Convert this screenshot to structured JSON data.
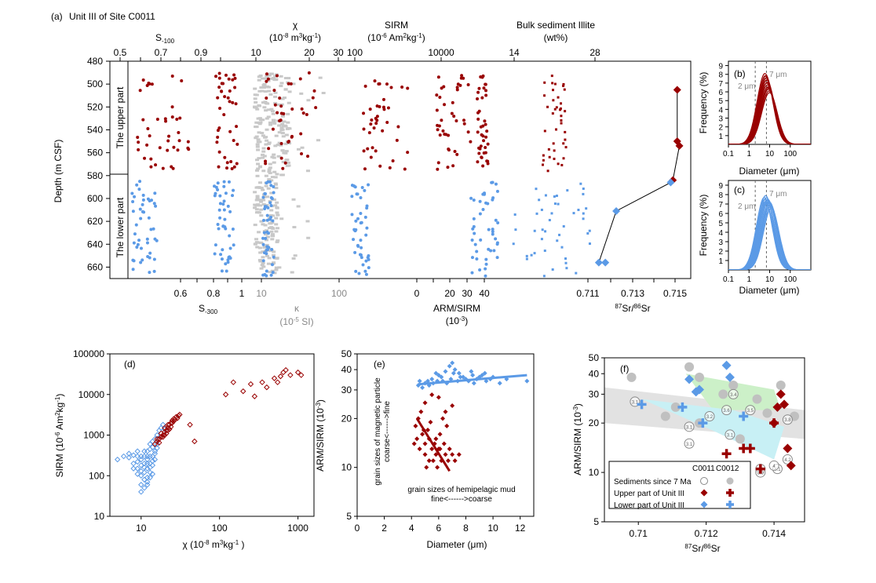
{
  "colors": {
    "upper": "#990000",
    "lower": "#5b9ae6",
    "gray": "#c8c8c8",
    "green": "#ccf0c8",
    "cyan": "#c8f0f5"
  },
  "chart_data": [
    {
      "id": "a",
      "type": "scatter",
      "panel_label": "(a)",
      "title": "Unit III of Site C0011",
      "ylabel": "Depth  (m CSF)",
      "ylim": [
        480,
        670
      ],
      "yticks": [
        "480",
        "500",
        "520",
        "540",
        "560",
        "580",
        "600",
        "620",
        "640",
        "660"
      ],
      "sections": [
        "The upper part",
        "The lower part"
      ],
      "boundary_depth": 580,
      "columns": [
        {
          "label": "S-100",
          "label_main": "S",
          "label_sub": "-100",
          "position": "top",
          "ticks": [
            "0.5",
            "0.7",
            "0.9"
          ],
          "xlim": [
            0.5,
            1.0
          ]
        },
        {
          "label": "χ",
          "label_unit": "(10-8 m3kg-1)",
          "unit_text": "(10",
          "unit_p1": "-8",
          "unit_mid": " m",
          "unit_p2": "3",
          "unit_mid2": "kg",
          "unit_p3": "-1",
          "unit_end": ")",
          "position": "top",
          "ticks": [
            "10",
            "20",
            "30"
          ],
          "scale": "log"
        },
        {
          "label": "SIRM",
          "unit_text": "(10",
          "unit_p1": "-6",
          "unit_mid": " Am",
          "unit_p2": "2",
          "unit_mid2": "kg",
          "unit_p3": "-1",
          "unit_end": ")",
          "position": "top",
          "ticks": [
            "100",
            "10000"
          ],
          "scale": "log"
        },
        {
          "label": "Bulk sediment Illite",
          "label_unit": "(wt%)",
          "position": "top",
          "ticks": [
            "14",
            "28"
          ]
        },
        {
          "label": "S-300",
          "label_main": "S",
          "label_sub": "-300",
          "position": "bottom",
          "ticks": [
            "0.6",
            "0.8",
            "1"
          ]
        },
        {
          "label": "κ",
          "label_unit": "(10-5 SI)",
          "unit_text": "(10",
          "unit_p1": "-5",
          "unit_mid": " SI)",
          "position": "bottom",
          "ticks": [
            "10",
            "100"
          ],
          "scale": "log",
          "color": "gray"
        },
        {
          "label": "ARM/SIRM",
          "label_unit": "(10-3)",
          "unit_text": "(10",
          "unit_p1": "-3",
          "unit_end": ")",
          "position": "bottom",
          "ticks": [
            "0",
            "20",
            "30",
            "40"
          ]
        },
        {
          "label": "87Sr/86Sr",
          "sup1": "87",
          "main1": "Sr/",
          "sup2": "86",
          "main2": "Sr",
          "position": "bottom",
          "ticks": [
            "0.711",
            "0.713",
            "0.715"
          ],
          "xlim": [
            0.71,
            0.7155
          ]
        }
      ],
      "sr_series": {
        "upper": [
          [
            0.7151,
            505
          ],
          [
            0.7151,
            550
          ],
          [
            0.7152,
            554
          ],
          [
            0.7149,
            584
          ]
        ],
        "lower": [
          [
            0.7148,
            586
          ],
          [
            0.7123,
            611
          ],
          [
            0.7115,
            656
          ],
          [
            0.7118,
            656
          ]
        ]
      }
    },
    {
      "id": "b",
      "type": "line",
      "panel_label": "(b)",
      "xlabel": "Diameter (μm)",
      "ylabel": "Frequency (%)",
      "xticks": [
        "0.1",
        "1",
        "10",
        "100"
      ],
      "yticks": [
        "1",
        "2",
        "3",
        "4",
        "5",
        "6",
        "7",
        "8",
        "9"
      ],
      "ylim": [
        0,
        9.5
      ],
      "markers": [
        "2 μm",
        "7 μm"
      ],
      "series_color": "upper",
      "curves": [
        {
          "peak": 7.8,
          "mode_um": 7
        },
        {
          "peak": 7.0,
          "mode_um": 8
        },
        {
          "peak": 6.5,
          "mode_um": 9
        },
        {
          "peak": 8.1,
          "mode_um": 6.5
        }
      ]
    },
    {
      "id": "c",
      "type": "line",
      "panel_label": "(c)",
      "xlabel": "Diameter (μm)",
      "ylabel": "Frequency (%)",
      "xticks": [
        "0.1",
        "1",
        "10",
        "100"
      ],
      "yticks": [
        "1",
        "2",
        "3",
        "4",
        "5",
        "6",
        "7",
        "8",
        "9"
      ],
      "ylim": [
        0,
        9.5
      ],
      "markers": [
        "2 μm",
        "7 μm"
      ],
      "series_color": "lower",
      "curves": [
        {
          "peak": 7.9,
          "mode_um": 7
        },
        {
          "peak": 7.5,
          "mode_um": 9
        },
        {
          "peak": 7.2,
          "mode_um": 11
        },
        {
          "peak": 7.7,
          "mode_um": 6
        }
      ]
    },
    {
      "id": "d",
      "type": "scatter",
      "panel_label": "(d)",
      "xlabel": "χ (10-8 m3kg-1)",
      "ylabel": "SIRM (10-6 Am2kg-1)",
      "xscale": "log",
      "yscale": "log",
      "xticks": [
        "10",
        "100",
        "1000"
      ],
      "yticks": [
        "10",
        "100",
        "1000",
        "10000",
        "100000"
      ],
      "xlim": [
        4,
        1600
      ],
      "ylim": [
        10,
        100000
      ],
      "upper_points": [
        [
          15,
          600
        ],
        [
          16,
          700
        ],
        [
          17,
          800
        ],
        [
          18,
          900
        ],
        [
          19,
          1000
        ],
        [
          20,
          1200
        ],
        [
          21,
          1300
        ],
        [
          22,
          1500
        ],
        [
          23,
          1800
        ],
        [
          24,
          2000
        ],
        [
          25,
          2300
        ],
        [
          26,
          2500
        ],
        [
          28,
          2800
        ],
        [
          30,
          3000
        ],
        [
          18,
          1100
        ],
        [
          20,
          1500
        ],
        [
          22,
          1800
        ],
        [
          24,
          1600
        ],
        [
          26,
          2200
        ],
        [
          17,
          650
        ],
        [
          19,
          900
        ],
        [
          21,
          1100
        ],
        [
          23,
          1400
        ],
        [
          25,
          2000
        ],
        [
          27,
          2400
        ],
        [
          29,
          2600
        ],
        [
          16,
          800
        ],
        [
          20,
          1000
        ],
        [
          22,
          1300
        ],
        [
          31,
          3200
        ],
        [
          42,
          1800
        ],
        [
          48,
          700
        ],
        [
          120,
          10000
        ],
        [
          150,
          20000
        ],
        [
          200,
          12000
        ],
        [
          250,
          18000
        ],
        [
          280,
          9000
        ],
        [
          350,
          20000
        ],
        [
          500,
          25000
        ],
        [
          600,
          28000
        ],
        [
          650,
          35000
        ],
        [
          700,
          40000
        ],
        [
          800,
          30000
        ],
        [
          1000,
          35000
        ],
        [
          1100,
          30000
        ],
        [
          400,
          15000
        ],
        [
          550,
          20000
        ]
      ],
      "lower_points": [
        [
          5,
          250
        ],
        [
          6,
          300
        ],
        [
          7,
          280
        ],
        [
          8,
          200
        ],
        [
          8,
          320
        ],
        [
          9,
          300
        ],
        [
          9,
          150
        ],
        [
          10,
          250
        ],
        [
          10,
          180
        ],
        [
          10,
          100
        ],
        [
          10,
          60
        ],
        [
          11,
          300
        ],
        [
          11,
          200
        ],
        [
          11,
          120
        ],
        [
          11,
          80
        ],
        [
          12,
          400
        ],
        [
          12,
          250
        ],
        [
          12,
          150
        ],
        [
          12,
          90
        ],
        [
          12,
          70
        ],
        [
          13,
          300
        ],
        [
          13,
          200
        ],
        [
          13,
          120
        ],
        [
          13,
          600
        ],
        [
          14,
          500
        ],
        [
          14,
          300
        ],
        [
          14,
          180
        ],
        [
          14,
          700
        ],
        [
          15,
          800
        ],
        [
          15,
          400
        ],
        [
          15,
          250
        ],
        [
          16,
          1000
        ],
        [
          16,
          600
        ],
        [
          17,
          1300
        ],
        [
          17,
          800
        ],
        [
          18,
          1500
        ],
        [
          19,
          1800
        ],
        [
          20,
          1400
        ],
        [
          9,
          400
        ],
        [
          10,
          300
        ],
        [
          11,
          400
        ],
        [
          12,
          300
        ],
        [
          13,
          450
        ],
        [
          7,
          350
        ],
        [
          8,
          150
        ],
        [
          9,
          220
        ],
        [
          10,
          130
        ],
        [
          11,
          160
        ],
        [
          12,
          200
        ],
        [
          13,
          160
        ],
        [
          14,
          230
        ],
        [
          15,
          350
        ],
        [
          16,
          480
        ],
        [
          12,
          60
        ],
        [
          11,
          50
        ],
        [
          10,
          40
        ],
        [
          13,
          90
        ],
        [
          14,
          110
        ],
        [
          9,
          110
        ]
      ]
    },
    {
      "id": "e",
      "type": "scatter",
      "panel_label": "(e)",
      "xlabel": "Diameter (μm)",
      "ylabel": "ARM/SIRM (10-3)",
      "yscale": "log",
      "xlim": [
        0,
        13
      ],
      "ylim": [
        5,
        50
      ],
      "xticks": [
        "0",
        "2",
        "4",
        "6",
        "8",
        "10",
        "12"
      ],
      "yticks": [
        "5",
        "10",
        "20",
        "30",
        "40",
        "50"
      ],
      "annotation_vertical": [
        "grain sizes of magnetic particle",
        "coarse<------>fine"
      ],
      "annotation_horizontal": [
        "grain sizes of hemipelagic mud",
        "fine<------>coarse"
      ],
      "upper_points": [
        [
          4.2,
          14
        ],
        [
          4.3,
          18
        ],
        [
          4.5,
          20
        ],
        [
          4.6,
          13
        ],
        [
          4.8,
          16
        ],
        [
          5,
          12
        ],
        [
          5,
          14
        ],
        [
          5.1,
          10
        ],
        [
          5.2,
          17
        ],
        [
          5.3,
          15
        ],
        [
          5.4,
          19
        ],
        [
          5.5,
          13
        ],
        [
          5.6,
          11
        ],
        [
          5.7,
          14
        ],
        [
          5.8,
          12
        ],
        [
          5.9,
          10
        ],
        [
          6,
          13
        ],
        [
          6.1,
          16
        ],
        [
          6.2,
          11
        ],
        [
          6.3,
          20
        ],
        [
          6.4,
          14
        ],
        [
          6.5,
          12
        ],
        [
          6.6,
          18
        ],
        [
          6.8,
          13
        ],
        [
          7,
          12
        ],
        [
          7.2,
          11
        ],
        [
          7.5,
          12
        ],
        [
          4.4,
          15
        ],
        [
          4.7,
          22
        ],
        [
          5,
          25
        ],
        [
          5.5,
          28
        ],
        [
          6,
          27
        ],
        [
          6.5,
          22
        ],
        [
          7,
          24
        ],
        [
          4.9,
          17
        ],
        [
          5.3,
          11
        ],
        [
          5.8,
          15
        ],
        [
          6.1,
          13
        ],
        [
          6.7,
          11
        ]
      ],
      "lower_points": [
        [
          4.5,
          32
        ],
        [
          5,
          33
        ],
        [
          5.2,
          34
        ],
        [
          5.5,
          35
        ],
        [
          5.8,
          38
        ],
        [
          6,
          37
        ],
        [
          6.2,
          36
        ],
        [
          6.5,
          39
        ],
        [
          6.8,
          42
        ],
        [
          7,
          44
        ],
        [
          7.2,
          40
        ],
        [
          7.5,
          38
        ],
        [
          7.8,
          36
        ],
        [
          8,
          35
        ],
        [
          8.2,
          34
        ],
        [
          8.5,
          37
        ],
        [
          8.8,
          35
        ],
        [
          9,
          36
        ],
        [
          9.5,
          34
        ],
        [
          10,
          36
        ],
        [
          10.5,
          33
        ],
        [
          11,
          35
        ],
        [
          12.5,
          34
        ],
        [
          4.8,
          31
        ],
        [
          5.3,
          32
        ],
        [
          5.6,
          33
        ],
        [
          6.3,
          34
        ],
        [
          6.6,
          33
        ],
        [
          7.4,
          34
        ],
        [
          8.6,
          33
        ],
        [
          9.2,
          37
        ],
        [
          9.8,
          35
        ],
        [
          6.9,
          35
        ],
        [
          7.6,
          36
        ],
        [
          5.9,
          34
        ],
        [
          4.6,
          34
        ],
        [
          7.1,
          38
        ],
        [
          8.4,
          39
        ],
        [
          9.4,
          38
        ]
      ],
      "fit_upper": [
        [
          4.4,
          20
        ],
        [
          6.8,
          9.5
        ]
      ],
      "fit_lower": [
        [
          4.5,
          32.5
        ],
        [
          12.5,
          37
        ]
      ]
    },
    {
      "id": "f",
      "type": "scatter",
      "panel_label": "(f)",
      "xlabel": "87Sr/86Sr",
      "ylabel": "ARM/SIRM (10-3)",
      "yscale": "log",
      "xlim": [
        0.709,
        0.7149
      ],
      "ylim": [
        5,
        50
      ],
      "xticks": [
        "0.71",
        "0.712",
        "0.714"
      ],
      "yticks": [
        "5",
        "10",
        "20",
        "30",
        "40",
        "50"
      ],
      "legend": {
        "header": [
          "C0011",
          "C0012"
        ],
        "rows": [
          "Sediments since 7 Ma",
          "Upper part of Unit III",
          "Lower part of Unit III"
        ]
      },
      "gray_points": [
        [
          0.7098,
          38
        ],
        [
          0.7108,
          22
        ],
        [
          0.7111,
          25
        ],
        [
          0.7115,
          44
        ],
        [
          0.7118,
          38
        ],
        [
          0.7125,
          30
        ],
        [
          0.7128,
          34
        ],
        [
          0.7135,
          28
        ],
        [
          0.7138,
          23
        ],
        [
          0.7142,
          34
        ],
        [
          0.7146,
          22
        ],
        [
          0.713,
          16
        ],
        [
          0.7118,
          20
        ]
      ],
      "gray_circle_labels": [
        [
          0.7099,
          27,
          "3.1"
        ],
        [
          0.7115,
          19,
          "3.1"
        ],
        [
          0.7115,
          15,
          "3.1"
        ],
        [
          0.7121,
          22,
          "3.2"
        ],
        [
          0.7126,
          24,
          "3.6"
        ],
        [
          0.7128,
          30,
          "3.4"
        ],
        [
          0.7127,
          17,
          "3.1"
        ],
        [
          0.7133,
          24,
          "3.5"
        ],
        [
          0.7144,
          21,
          "3.8"
        ],
        [
          0.7144,
          12,
          "4.2"
        ],
        [
          0.7141,
          10.5,
          "4.1"
        ],
        [
          0.714,
          11,
          "4"
        ],
        [
          0.7136,
          10.5,
          "4"
        ],
        [
          0.7136,
          10,
          "3.9"
        ]
      ],
      "upper_diamonds": [
        [
          0.7142,
          30
        ],
        [
          0.7143,
          26
        ],
        [
          0.7141,
          25
        ],
        [
          0.714,
          20
        ],
        [
          0.7144,
          14
        ],
        [
          0.7145,
          11
        ]
      ],
      "upper_plus": [
        [
          0.7126,
          13
        ],
        [
          0.7131,
          14
        ],
        [
          0.7133,
          14
        ],
        [
          0.714,
          20
        ],
        [
          0.7136,
          10.5
        ]
      ],
      "lower_diamonds": [
        [
          0.7115,
          37
        ],
        [
          0.7117,
          31
        ],
        [
          0.7118,
          32
        ],
        [
          0.7127,
          38
        ],
        [
          0.7126,
          45
        ]
      ],
      "lower_plus": [
        [
          0.7101,
          26
        ],
        [
          0.7113,
          25
        ],
        [
          0.7119,
          20
        ],
        [
          0.7131,
          22
        ]
      ]
    }
  ]
}
